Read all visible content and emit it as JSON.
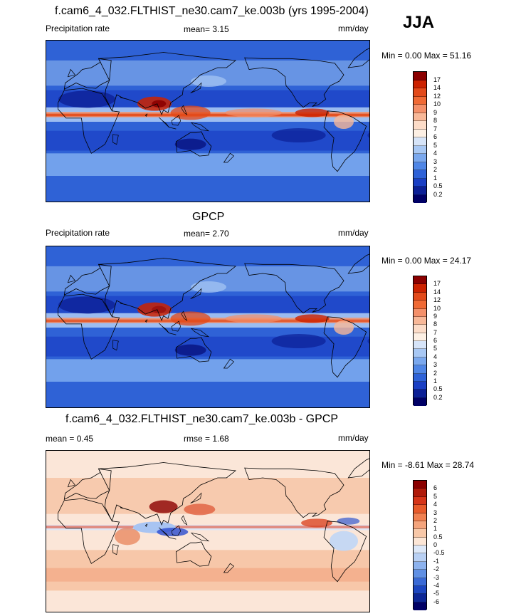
{
  "season": "JJA",
  "panels": [
    {
      "id": "model",
      "title": "f.cam6_4_032.FLTHIST_ne30.cam7_ke.003b (yrs 1995-2004)",
      "left_label": "Precipitation rate",
      "center_label": "mean=   3.15",
      "right_label": "mm/day",
      "minmax": "Min =   0.00 Max =  51.16",
      "colorbar_labels": [
        "17",
        "14",
        "12",
        "10",
        "9",
        "8",
        "7",
        "6",
        "5",
        "4",
        "3",
        "2",
        "1",
        "0.5",
        "0.2"
      ],
      "colorbar_colors": [
        "#8b0000",
        "#cc2200",
        "#e34a1a",
        "#f06a35",
        "#f4906a",
        "#f8b898",
        "#fcdcc8",
        "#fdf0e4",
        "#d6e4f8",
        "#a8c8f4",
        "#7aa8ee",
        "#4f86e6",
        "#2e62d8",
        "#1a3fc4",
        "#0c2096",
        "#000066"
      ]
    },
    {
      "id": "obs",
      "title": "GPCP",
      "left_label": "Precipitation rate",
      "center_label": "mean=   2.70",
      "right_label": "mm/day",
      "minmax": "Min =   0.00 Max =  24.17",
      "colorbar_labels": [
        "17",
        "14",
        "12",
        "10",
        "9",
        "8",
        "7",
        "6",
        "5",
        "4",
        "3",
        "2",
        "1",
        "0.5",
        "0.2"
      ],
      "colorbar_colors": [
        "#8b0000",
        "#cc2200",
        "#e34a1a",
        "#f06a35",
        "#f4906a",
        "#f8b898",
        "#fcdcc8",
        "#fdf0e4",
        "#d6e4f8",
        "#a8c8f4",
        "#7aa8ee",
        "#4f86e6",
        "#2e62d8",
        "#1a3fc4",
        "#0c2096",
        "#000066"
      ]
    },
    {
      "id": "diff",
      "title": "f.cam6_4_032.FLTHIST_ne30.cam7_ke.003b - GPCP",
      "left_label": "mean =   0.45",
      "center_label": "rmse =   1.68",
      "right_label": "mm/day",
      "minmax": "Min =  -8.61 Max =  28.74",
      "colorbar_labels": [
        "6",
        "5",
        "4",
        "3",
        "2",
        "1",
        "0.5",
        "0",
        "-0.5",
        "-1",
        "-2",
        "-3",
        "-4",
        "-5",
        "-6"
      ],
      "colorbar_colors": [
        "#8b0000",
        "#b01a0a",
        "#d63418",
        "#e85a2a",
        "#f08050",
        "#f4a47c",
        "#f8c8a8",
        "#fce6d6",
        "#dde8f8",
        "#b8d0f4",
        "#8cb2ee",
        "#6090e4",
        "#3a6ad6",
        "#1c46c0",
        "#0c2696",
        "#000066"
      ]
    }
  ]
}
